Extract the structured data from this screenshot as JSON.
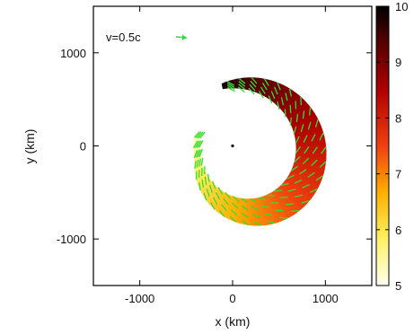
{
  "chart_data": {
    "type": "heatmap",
    "title": "",
    "xlabel": "x (km)",
    "ylabel": "y (km)",
    "xlim": [
      -1500,
      1500
    ],
    "ylim": [
      -1500,
      1500
    ],
    "x_ticks": [
      -1000,
      0,
      1000
    ],
    "y_ticks": [
      -1000,
      0,
      1000
    ],
    "x_tick_labels": [
      "-1000",
      "0",
      "1000"
    ],
    "y_tick_labels": [
      "-1000",
      "0",
      "1000"
    ],
    "grid": false,
    "colorbar": {
      "min": 5,
      "max": 10,
      "ticks": [
        5,
        6,
        7,
        8,
        9,
        10
      ],
      "tick_labels": [
        "5",
        "6",
        "7",
        "8",
        "9",
        "10"
      ],
      "colors": [
        "#fffff0",
        "#fff060",
        "#ffb000",
        "#f04010",
        "#b00000",
        "#500000",
        "#000000"
      ]
    },
    "spiral": {
      "arc_start_deg": 100,
      "arc_end_deg": -190,
      "inner_radius_start": 620,
      "inner_radius_end": 570,
      "outer_radius_start": 680,
      "outer_radius_end": 640,
      "center_offset_start": [
        0,
        0
      ],
      "center_offset_end": [
        230,
        30
      ],
      "value_start": 9.8,
      "value_end": 5.2
    },
    "center_point": [
      0,
      0
    ],
    "arrow_color": "#33dd33",
    "legend": {
      "label": "v=0.5c",
      "placement": "top-left"
    }
  }
}
